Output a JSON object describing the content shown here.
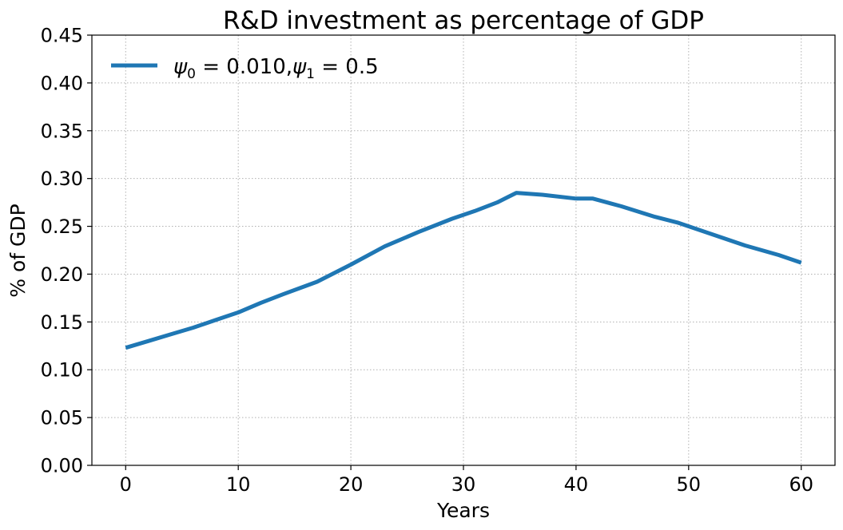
{
  "chart_data": {
    "type": "line",
    "title": "R&D investment as percentage of  GDP",
    "xlabel": "Years",
    "ylabel": "% of GDP",
    "xlim": [
      -3,
      63
    ],
    "ylim": [
      0,
      0.45
    ],
    "xticks": [
      0,
      10,
      20,
      30,
      40,
      50,
      60
    ],
    "xtick_labels": [
      "0",
      "10",
      "20",
      "30",
      "40",
      "50",
      "60"
    ],
    "yticks": [
      0,
      0.05,
      0.1,
      0.15,
      0.2,
      0.25,
      0.3,
      0.35,
      0.4,
      0.45
    ],
    "ytick_labels": [
      "0.00",
      "0.05",
      "0.10",
      "0.15",
      "0.20",
      "0.25",
      "0.30",
      "0.35",
      "0.40",
      "0.45"
    ],
    "grid": true,
    "legend_position": "top-left",
    "series": [
      {
        "name": "ψ0 = 0.010,ψ1 = 0.5",
        "legend_parts": {
          "psi": "ψ",
          "sub0": "0",
          "eq0": " = 0.010,",
          "sub1": "1",
          "eq1": " = 0.5"
        },
        "color": "#1f77b4",
        "x": [
          0,
          2,
          4,
          6,
          8,
          10,
          12,
          14,
          17,
          20,
          23,
          26,
          29,
          31,
          33,
          34.7,
          37,
          40,
          41.5,
          44,
          47,
          49,
          52,
          55,
          58,
          60
        ],
        "y": [
          0.123,
          0.13,
          0.137,
          0.144,
          0.152,
          0.16,
          0.17,
          0.179,
          0.192,
          0.21,
          0.229,
          0.244,
          0.258,
          0.266,
          0.275,
          0.285,
          0.283,
          0.279,
          0.279,
          0.271,
          0.26,
          0.254,
          0.242,
          0.23,
          0.22,
          0.212
        ]
      }
    ]
  }
}
